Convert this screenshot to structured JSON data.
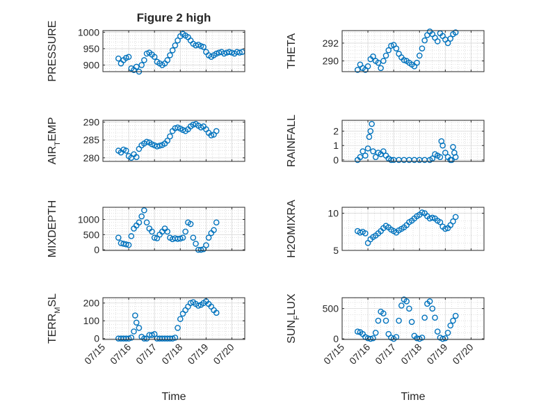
{
  "figure": {
    "title": "Figure 2 high",
    "xlabel": "Time",
    "marker_color": "#0072BD"
  },
  "chart_data": [
    {
      "type": "scatter",
      "id": "pressure",
      "title": "Figure 2 high",
      "ylabel": "PRESSURE",
      "ylim": [
        880,
        1005
      ],
      "yticks": [
        900,
        950,
        1000
      ],
      "xticks_shown": false,
      "x": [
        0.6,
        0.7,
        0.8,
        0.9,
        1.0,
        1.1,
        1.2,
        1.3,
        1.4,
        1.5,
        1.6,
        1.7,
        1.8,
        1.9,
        2.0,
        2.1,
        2.2,
        2.3,
        2.4,
        2.5,
        2.6,
        2.7,
        2.8,
        2.9,
        3.0,
        3.1,
        3.2,
        3.3,
        3.4,
        3.5,
        3.6,
        3.7,
        3.8,
        3.9,
        4.0,
        4.1,
        4.2,
        4.3,
        4.4,
        4.5,
        4.6,
        4.7,
        4.8,
        4.9,
        5.0,
        5.1,
        5.2,
        5.3,
        5.4
      ],
      "y": [
        920,
        905,
        915,
        922,
        925,
        890,
        885,
        895,
        880,
        900,
        915,
        935,
        938,
        932,
        925,
        910,
        905,
        900,
        905,
        915,
        930,
        945,
        960,
        975,
        988,
        995,
        990,
        985,
        975,
        965,
        960,
        962,
        958,
        955,
        940,
        930,
        925,
        930,
        935,
        938,
        940,
        935,
        938,
        940,
        938,
        935,
        940,
        938,
        940
      ]
    },
    {
      "type": "scatter",
      "id": "theta",
      "ylabel": "THETA",
      "ylim": [
        288.8,
        293.4
      ],
      "yticks": [
        290,
        292
      ],
      "xticks_shown": false,
      "x": [
        0.6,
        0.7,
        0.8,
        0.9,
        1.0,
        1.1,
        1.2,
        1.3,
        1.4,
        1.5,
        1.6,
        1.7,
        1.8,
        1.9,
        2.0,
        2.1,
        2.2,
        2.3,
        2.4,
        2.5,
        2.6,
        2.7,
        2.8,
        2.9,
        3.0,
        3.1,
        3.2,
        3.3,
        3.4,
        3.5,
        3.6,
        3.7,
        3.8,
        3.9,
        4.0,
        4.1,
        4.2,
        4.3,
        4.4
      ],
      "y": [
        289.0,
        289.6,
        289.2,
        289.0,
        289.4,
        290.2,
        290.5,
        290.0,
        289.8,
        289.2,
        290.0,
        290.6,
        291.2,
        291.7,
        291.8,
        291.4,
        290.8,
        290.4,
        290.1,
        290.0,
        289.8,
        289.6,
        289.4,
        289.8,
        290.6,
        291.4,
        292.3,
        292.9,
        293.3,
        293.0,
        292.6,
        292.2,
        293.1,
        292.8,
        292.4,
        292.0,
        292.5,
        293.0,
        293.2
      ]
    },
    {
      "type": "scatter",
      "id": "air_temp",
      "ylabel": "AIR_TEMP",
      "ylim": [
        279,
        290.5
      ],
      "yticks": [
        280,
        285,
        290
      ],
      "xticks_shown": false,
      "x": [
        0.6,
        0.7,
        0.8,
        0.9,
        1.0,
        1.1,
        1.2,
        1.3,
        1.4,
        1.5,
        1.6,
        1.7,
        1.8,
        1.9,
        2.0,
        2.1,
        2.2,
        2.3,
        2.4,
        2.5,
        2.6,
        2.7,
        2.8,
        2.9,
        3.0,
        3.1,
        3.2,
        3.3,
        3.4,
        3.5,
        3.6,
        3.7,
        3.8,
        3.9,
        4.0,
        4.1,
        4.2,
        4.3,
        4.4
      ],
      "y": [
        282.0,
        281.5,
        282.3,
        282.0,
        280.5,
        280.0,
        281.0,
        280.2,
        282.5,
        283.5,
        284.0,
        284.5,
        284.3,
        283.8,
        283.5,
        283.2,
        283.4,
        283.6,
        284.0,
        284.8,
        286.0,
        287.5,
        288.3,
        288.5,
        288.2,
        287.8,
        287.5,
        288.0,
        288.8,
        289.3,
        289.5,
        289.0,
        288.5,
        288.8,
        288.0,
        287.0,
        286.3,
        286.5,
        287.5
      ]
    },
    {
      "type": "scatter",
      "id": "rainfall",
      "ylabel": "RAINFALL",
      "ylim": [
        -0.1,
        2.75
      ],
      "yticks": [
        0,
        1,
        2
      ],
      "xticks_shown": false,
      "x": [
        0.6,
        0.7,
        0.8,
        0.9,
        1.0,
        1.05,
        1.1,
        1.15,
        1.2,
        1.3,
        1.4,
        1.5,
        1.6,
        1.7,
        1.8,
        1.9,
        2.0,
        2.2,
        2.4,
        2.6,
        2.8,
        3.0,
        3.2,
        3.4,
        3.5,
        3.6,
        3.7,
        3.8,
        3.85,
        3.9,
        4.0,
        4.1,
        4.2,
        4.25,
        4.3,
        4.35,
        4.4
      ],
      "y": [
        0.0,
        0.2,
        0.6,
        0.3,
        0.8,
        1.6,
        2.0,
        2.5,
        0.6,
        0.2,
        0.5,
        0.4,
        0.6,
        0.3,
        0.1,
        0.0,
        0.0,
        0.0,
        0.0,
        0.0,
        0.0,
        0.0,
        0.0,
        0.0,
        0.1,
        0.4,
        0.3,
        0.2,
        1.3,
        1.0,
        0.5,
        0.2,
        0.0,
        0.0,
        0.9,
        0.5,
        0.2
      ]
    },
    {
      "type": "scatter",
      "id": "mixdepth",
      "ylabel": "MIXDEPTH",
      "ylim": [
        -20,
        1400
      ],
      "yticks": [
        0,
        500,
        1000
      ],
      "xticks_shown": false,
      "x": [
        0.6,
        0.7,
        0.8,
        0.9,
        1.0,
        1.1,
        1.2,
        1.3,
        1.4,
        1.5,
        1.6,
        1.7,
        1.8,
        1.9,
        2.0,
        2.1,
        2.2,
        2.3,
        2.4,
        2.5,
        2.6,
        2.7,
        2.8,
        2.9,
        3.0,
        3.1,
        3.2,
        3.3,
        3.4,
        3.5,
        3.6,
        3.7,
        3.8,
        3.9,
        4.0,
        4.1,
        4.2,
        4.3,
        4.4
      ],
      "y": [
        400,
        220,
        200,
        180,
        160,
        450,
        700,
        800,
        900,
        1100,
        1300,
        900,
        700,
        600,
        400,
        380,
        500,
        600,
        700,
        600,
        400,
        350,
        380,
        360,
        370,
        400,
        600,
        900,
        850,
        400,
        200,
        0,
        0,
        20,
        150,
        400,
        550,
        650,
        900
      ]
    },
    {
      "type": "scatter",
      "id": "h2omixra",
      "ylabel": "H2OMIXRA",
      "ylim": [
        5,
        10.8
      ],
      "yticks": [
        5,
        10
      ],
      "xticks_shown": false,
      "x": [
        0.6,
        0.7,
        0.8,
        0.9,
        1.0,
        1.1,
        1.2,
        1.3,
        1.4,
        1.5,
        1.6,
        1.7,
        1.8,
        1.9,
        2.0,
        2.1,
        2.2,
        2.3,
        2.4,
        2.5,
        2.6,
        2.7,
        2.8,
        2.9,
        3.0,
        3.1,
        3.2,
        3.3,
        3.4,
        3.5,
        3.6,
        3.7,
        3.8,
        3.9,
        4.0,
        4.1,
        4.2,
        4.3,
        4.4
      ],
      "y": [
        7.6,
        7.4,
        7.5,
        7.3,
        6.0,
        6.5,
        6.8,
        7.0,
        7.3,
        7.6,
        8.0,
        8.3,
        8.1,
        7.8,
        7.6,
        7.4,
        7.7,
        7.9,
        8.1,
        8.4,
        8.8,
        9.0,
        9.3,
        9.6,
        9.8,
        10.1,
        10.0,
        9.6,
        9.3,
        9.4,
        9.3,
        9.0,
        8.8,
        8.2,
        7.9,
        8.0,
        8.4,
        8.9,
        9.5
      ]
    },
    {
      "type": "scatter",
      "id": "terr_msl",
      "ylabel": "TERR_MSL",
      "ylim": [
        -5,
        230
      ],
      "yticks": [
        0,
        100,
        200
      ],
      "xticks_shown": true,
      "x": [
        0.6,
        0.7,
        0.8,
        0.9,
        1.0,
        1.1,
        1.2,
        1.25,
        1.3,
        1.4,
        1.5,
        1.6,
        1.7,
        1.8,
        1.9,
        2.0,
        2.1,
        2.2,
        2.3,
        2.4,
        2.5,
        2.6,
        2.7,
        2.8,
        2.9,
        3.0,
        3.1,
        3.2,
        3.3,
        3.4,
        3.5,
        3.6,
        3.7,
        3.8,
        3.9,
        4.0,
        4.1,
        4.2,
        4.3,
        4.4
      ],
      "y": [
        0,
        0,
        0,
        0,
        0,
        5,
        40,
        130,
        90,
        60,
        10,
        0,
        0,
        20,
        20,
        25,
        0,
        0,
        0,
        0,
        0,
        0,
        0,
        5,
        60,
        110,
        140,
        160,
        180,
        200,
        205,
        195,
        185,
        190,
        200,
        210,
        195,
        180,
        160,
        145
      ]
    },
    {
      "type": "scatter",
      "id": "sun_flux",
      "ylabel": "SUN_FLUX",
      "ylim": [
        -10,
        680
      ],
      "yticks": [
        0,
        500
      ],
      "xticks_shown": true,
      "x": [
        0.6,
        0.7,
        0.8,
        0.9,
        1.0,
        1.1,
        1.2,
        1.3,
        1.4,
        1.5,
        1.6,
        1.7,
        1.8,
        1.9,
        2.0,
        2.1,
        2.2,
        2.3,
        2.4,
        2.5,
        2.6,
        2.7,
        2.8,
        2.9,
        3.0,
        3.1,
        3.2,
        3.3,
        3.4,
        3.5,
        3.6,
        3.7,
        3.8,
        3.9,
        4.0,
        4.1,
        4.2,
        4.3,
        4.4
      ],
      "y": [
        120,
        110,
        80,
        30,
        10,
        0,
        10,
        100,
        300,
        450,
        420,
        300,
        80,
        20,
        0,
        30,
        300,
        550,
        650,
        620,
        500,
        280,
        50,
        10,
        0,
        20,
        350,
        580,
        620,
        500,
        350,
        120,
        20,
        0,
        10,
        100,
        220,
        300,
        380
      ]
    }
  ],
  "x_axis": {
    "xlim": [
      0,
      5.5
    ],
    "tick_values": [
      0,
      1,
      2,
      3,
      4,
      5
    ],
    "tick_labels": [
      "07/15",
      "07/16",
      "07/17",
      "07/18",
      "07/19",
      "07/20"
    ]
  }
}
